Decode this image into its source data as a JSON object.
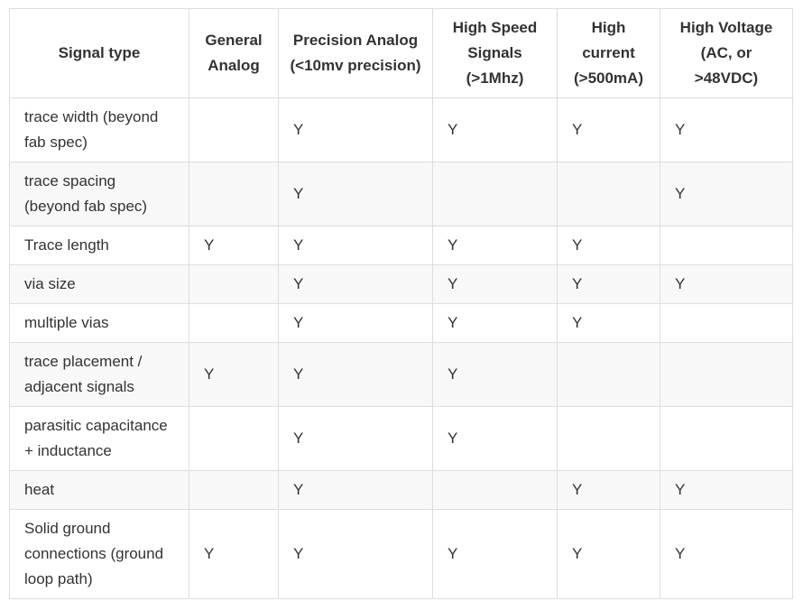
{
  "table": {
    "headers": [
      "Signal type",
      "General Analog",
      "Precision Analog (<10mv precision)",
      "High Speed Signals (>1Mhz)",
      "High current (>500mA)",
      "High Voltage (AC, or >48VDC)"
    ],
    "rows": [
      [
        "trace width (beyond fab spec)",
        "",
        "Y",
        "Y",
        "Y",
        "Y"
      ],
      [
        "trace spacing (beyond fab spec)",
        "",
        "Y",
        "",
        "",
        "Y"
      ],
      [
        "Trace length",
        "Y",
        "Y",
        "Y",
        "Y",
        ""
      ],
      [
        "via size",
        "",
        "Y",
        "Y",
        "Y",
        "Y"
      ],
      [
        "multiple vias",
        "",
        "Y",
        "Y",
        "Y",
        ""
      ],
      [
        "trace placement / adjacent signals",
        "Y",
        "Y",
        "Y",
        "",
        ""
      ],
      [
        "parasitic capacitance + inductance",
        "",
        "Y",
        "Y",
        "",
        ""
      ],
      [
        "heat",
        "",
        "Y",
        "",
        "Y",
        "Y"
      ],
      [
        "Solid ground connections (ground loop path)",
        "Y",
        "Y",
        "Y",
        "Y",
        "Y"
      ]
    ]
  }
}
